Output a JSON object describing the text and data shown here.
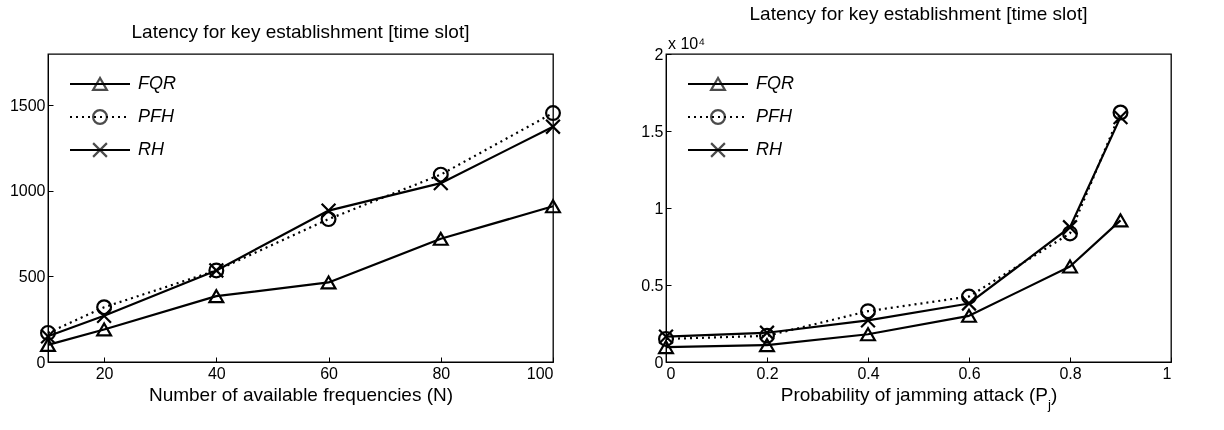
{
  "chart_data": [
    {
      "type": "line",
      "title": "Latency for key establishment [time slot]",
      "xlabel": "Number of available frequencies (N)",
      "x": [
        10,
        20,
        40,
        60,
        80,
        100
      ],
      "xlim": [
        10,
        100
      ],
      "xticks": [
        20,
        40,
        60,
        80,
        100
      ],
      "ylim": [
        0,
        1800
      ],
      "yticks": [
        0,
        500,
        1000,
        1500
      ],
      "grid": false,
      "legend": "top left",
      "series": [
        {
          "name": "FQR",
          "color": "#000000",
          "marker": "triangle",
          "line_style": "solid",
          "values": [
            100,
            190,
            385,
            465,
            720,
            910
          ]
        },
        {
          "name": "PFH",
          "color": "#000000",
          "marker": "circle",
          "line_style": "dotted",
          "values": [
            170,
            320,
            535,
            835,
            1095,
            1455
          ]
        },
        {
          "name": "RH",
          "color": "#000000",
          "marker": "cross",
          "line_style": "solid",
          "values": [
            150,
            270,
            535,
            885,
            1045,
            1375
          ]
        }
      ]
    },
    {
      "type": "line",
      "title": "Latency for key establishment [time slot]",
      "xlabel": "Probability of jamming attack (P$_{j}$)",
      "annotations": [
        "x 10⁴"
      ],
      "x": [
        0,
        0.2,
        0.4,
        0.6,
        0.8,
        0.9
      ],
      "xlim": [
        0,
        1
      ],
      "xticks": [
        0,
        0.2,
        0.4,
        0.6,
        0.8,
        1
      ],
      "ylim": [
        0,
        2
      ],
      "yticks": [
        0,
        0.5,
        1,
        1.5,
        2
      ],
      "grid": false,
      "legend": "top left",
      "series": [
        {
          "name": "FQR",
          "color": "#000000",
          "marker": "triangle",
          "line_style": "solid",
          "values": [
            0.097,
            0.11,
            0.18,
            0.3,
            0.62,
            0.92
          ]
        },
        {
          "name": "PFH",
          "color": "#000000",
          "marker": "circle",
          "line_style": "dotted",
          "values": [
            0.15,
            0.17,
            0.33,
            0.425,
            0.835,
            1.62
          ]
        },
        {
          "name": "RH",
          "color": "#000000",
          "marker": "cross",
          "line_style": "solid",
          "values": [
            0.165,
            0.19,
            0.27,
            0.38,
            0.875,
            1.59
          ]
        }
      ]
    }
  ]
}
